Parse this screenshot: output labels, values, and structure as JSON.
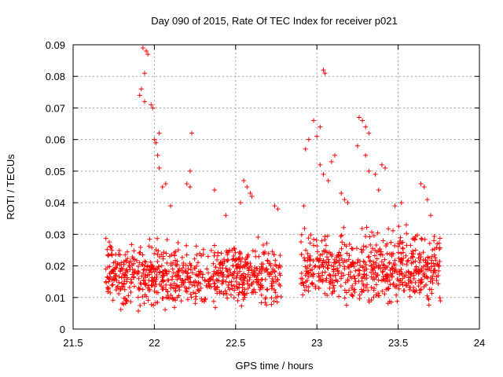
{
  "chart_data": {
    "type": "scatter",
    "title": "Day 090 of 2015, Rate Of TEC Index for receiver p021",
    "xlabel": "GPS time / hours",
    "ylabel": "ROTI / TECUs",
    "xlim": [
      21.5,
      24
    ],
    "ylim": [
      0,
      0.09
    ],
    "xticks": [
      "21.5",
      "22",
      "22.5",
      "23",
      "23.5",
      "24"
    ],
    "yticks": [
      "0",
      "0.01",
      "0.02",
      "0.03",
      "0.04",
      "0.05",
      "0.06",
      "0.07",
      "0.08",
      "0.09"
    ],
    "grid": true,
    "marker": "+",
    "color": "#ff0000",
    "series": [
      {
        "name": "ROTI",
        "segments": [
          {
            "x_start": 21.7,
            "x_end": 22.78,
            "band_low": 0.005,
            "band_high": 0.031
          },
          {
            "x_start": 22.9,
            "x_end": 23.76,
            "band_low": 0.006,
            "band_high": 0.035
          }
        ],
        "points": [
          {
            "x": 21.93,
            "y": 0.089
          },
          {
            "x": 21.95,
            "y": 0.088
          },
          {
            "x": 21.96,
            "y": 0.087
          },
          {
            "x": 21.94,
            "y": 0.081
          },
          {
            "x": 21.92,
            "y": 0.076
          },
          {
            "x": 21.91,
            "y": 0.074
          },
          {
            "x": 21.94,
            "y": 0.072
          },
          {
            "x": 21.98,
            "y": 0.071
          },
          {
            "x": 21.99,
            "y": 0.07
          },
          {
            "x": 22.0,
            "y": 0.06
          },
          {
            "x": 22.01,
            "y": 0.059
          },
          {
            "x": 22.03,
            "y": 0.062
          },
          {
            "x": 22.02,
            "y": 0.055
          },
          {
            "x": 22.03,
            "y": 0.051
          },
          {
            "x": 22.05,
            "y": 0.045
          },
          {
            "x": 22.07,
            "y": 0.046
          },
          {
            "x": 22.1,
            "y": 0.039
          },
          {
            "x": 22.23,
            "y": 0.062
          },
          {
            "x": 22.22,
            "y": 0.05
          },
          {
            "x": 22.2,
            "y": 0.046
          },
          {
            "x": 22.22,
            "y": 0.045
          },
          {
            "x": 22.37,
            "y": 0.044
          },
          {
            "x": 22.44,
            "y": 0.036
          },
          {
            "x": 22.55,
            "y": 0.047
          },
          {
            "x": 22.57,
            "y": 0.045
          },
          {
            "x": 22.59,
            "y": 0.043
          },
          {
            "x": 22.6,
            "y": 0.042
          },
          {
            "x": 22.53,
            "y": 0.04
          },
          {
            "x": 22.74,
            "y": 0.039
          },
          {
            "x": 22.76,
            "y": 0.038
          },
          {
            "x": 22.92,
            "y": 0.039
          },
          {
            "x": 22.93,
            "y": 0.057
          },
          {
            "x": 22.95,
            "y": 0.06
          },
          {
            "x": 22.98,
            "y": 0.066
          },
          {
            "x": 23.0,
            "y": 0.061
          },
          {
            "x": 23.02,
            "y": 0.064
          },
          {
            "x": 23.04,
            "y": 0.082
          },
          {
            "x": 23.05,
            "y": 0.081
          },
          {
            "x": 23.02,
            "y": 0.052
          },
          {
            "x": 23.04,
            "y": 0.049
          },
          {
            "x": 23.07,
            "y": 0.047
          },
          {
            "x": 23.09,
            "y": 0.053
          },
          {
            "x": 23.11,
            "y": 0.055
          },
          {
            "x": 23.15,
            "y": 0.043
          },
          {
            "x": 23.17,
            "y": 0.041
          },
          {
            "x": 23.19,
            "y": 0.04
          },
          {
            "x": 23.26,
            "y": 0.067
          },
          {
            "x": 23.28,
            "y": 0.066
          },
          {
            "x": 23.3,
            "y": 0.064
          },
          {
            "x": 23.32,
            "y": 0.062
          },
          {
            "x": 23.25,
            "y": 0.058
          },
          {
            "x": 23.3,
            "y": 0.055
          },
          {
            "x": 23.32,
            "y": 0.05
          },
          {
            "x": 23.36,
            "y": 0.049
          },
          {
            "x": 23.4,
            "y": 0.052
          },
          {
            "x": 23.42,
            "y": 0.051
          },
          {
            "x": 23.38,
            "y": 0.044
          },
          {
            "x": 23.48,
            "y": 0.039
          },
          {
            "x": 23.52,
            "y": 0.04
          },
          {
            "x": 23.55,
            "y": 0.033
          },
          {
            "x": 23.64,
            "y": 0.046
          },
          {
            "x": 23.66,
            "y": 0.045
          },
          {
            "x": 23.68,
            "y": 0.041
          },
          {
            "x": 23.7,
            "y": 0.036
          },
          {
            "x": 23.72,
            "y": 0.028
          },
          {
            "x": 23.74,
            "y": 0.027
          }
        ]
      }
    ]
  }
}
